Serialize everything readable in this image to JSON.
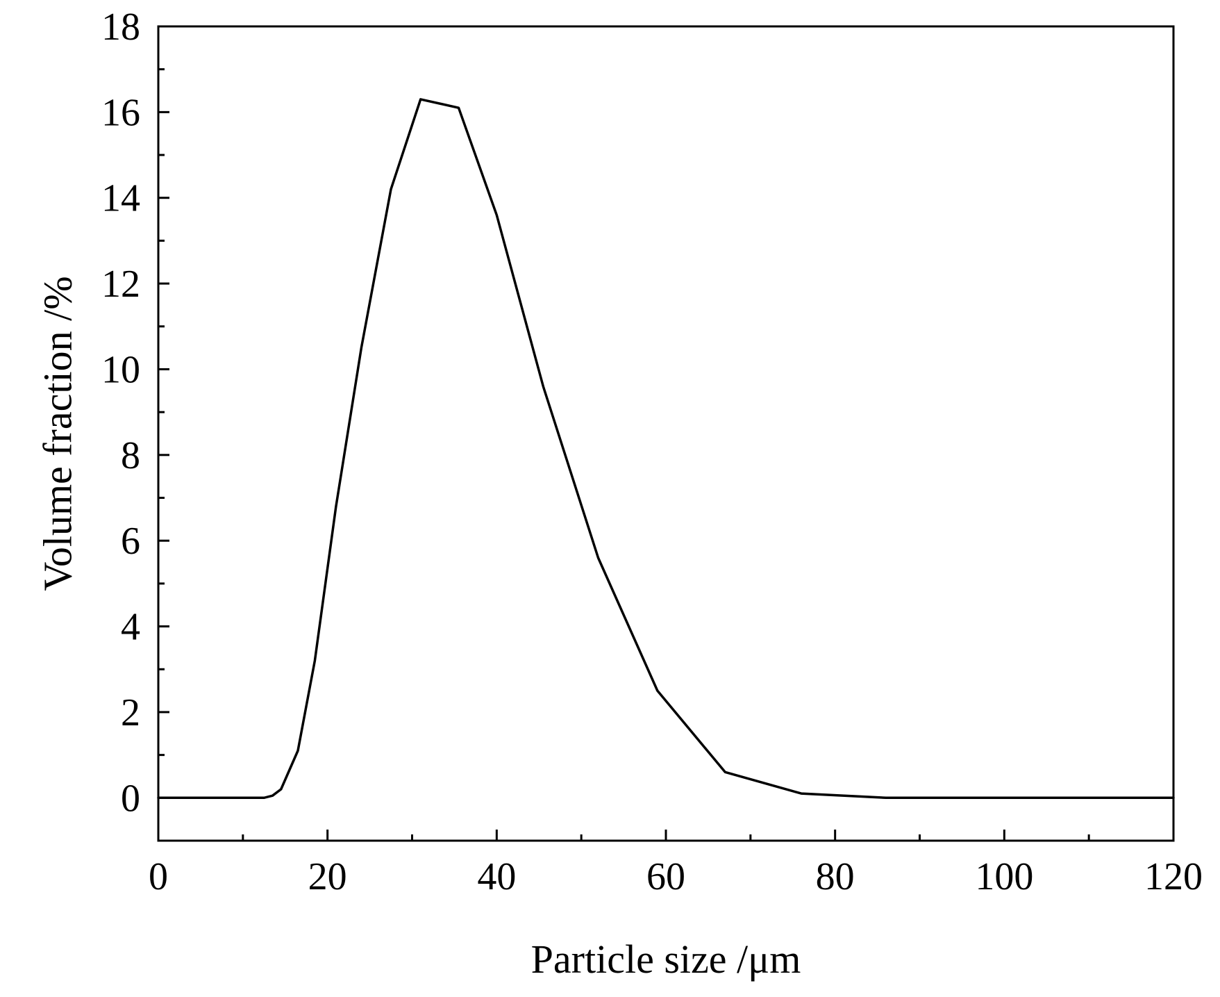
{
  "chart_data": {
    "type": "line",
    "title": "",
    "xlabel": "Particle size /μm",
    "ylabel": "Volume fraction /%",
    "xlim": [
      0,
      120
    ],
    "ylim": [
      -1,
      18
    ],
    "xticks": [
      0,
      20,
      40,
      60,
      80,
      100,
      120
    ],
    "yticks": [
      0,
      2,
      4,
      6,
      8,
      10,
      12,
      14,
      16,
      18
    ],
    "x_minor_step": 10,
    "y_minor_step": 1,
    "grid": false,
    "legend": "none",
    "series": [
      {
        "color": "#000000",
        "x": [
          0,
          12.5,
          13.5,
          14.5,
          16.5,
          18.5,
          21,
          24,
          27.5,
          31,
          35.5,
          40,
          45.5,
          52,
          59,
          67,
          76,
          86,
          100,
          120
        ],
        "y": [
          0,
          0,
          0.05,
          0.2,
          1.1,
          3.2,
          6.8,
          10.5,
          14.2,
          16.3,
          16.1,
          13.6,
          9.6,
          5.6,
          2.5,
          0.6,
          0.1,
          0,
          0,
          0
        ]
      }
    ]
  }
}
